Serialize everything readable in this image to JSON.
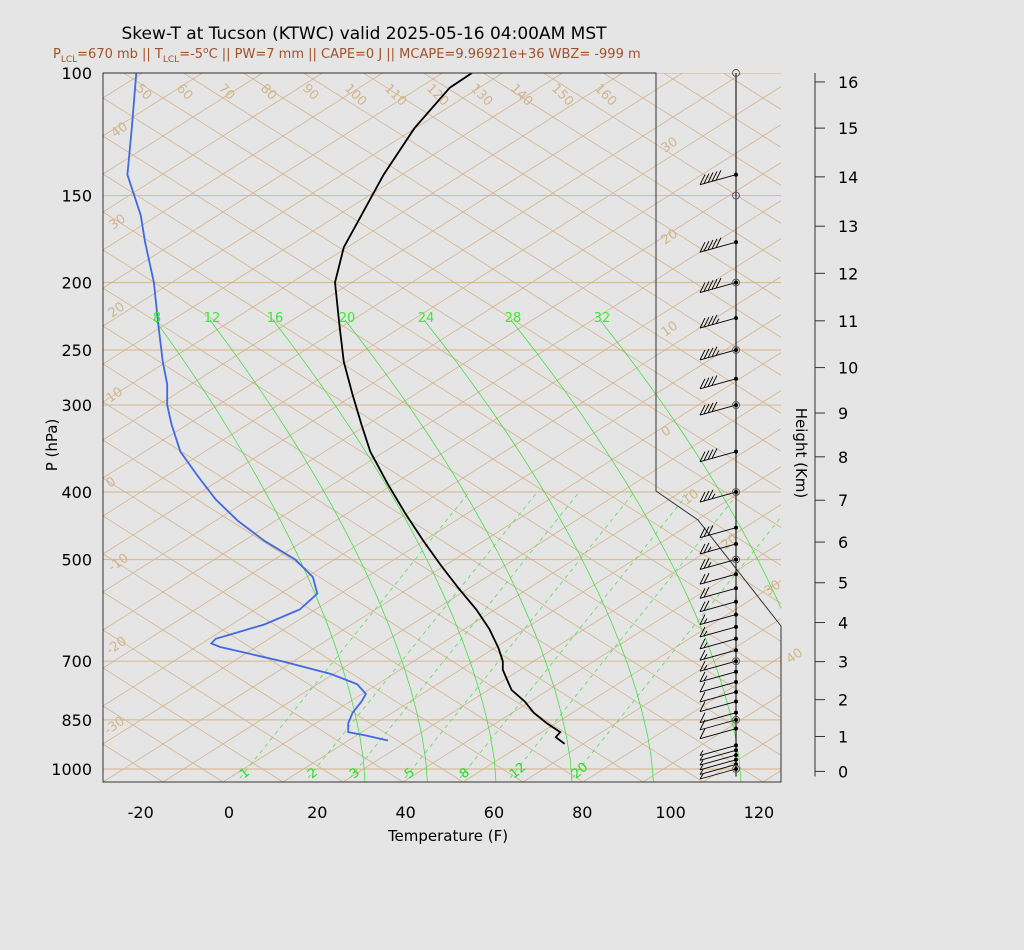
{
  "title": "Skew-T at Tucson (KTWC) valid 2025-05-16 04:00AM MST",
  "subtitle": {
    "p_lcl": "P",
    "p_lcl_sub": "LCL",
    "p_lcl_val": "=670 mb || T",
    "t_lcl_sub": "LCL",
    "t_lcl_val": "=-5",
    "t_lcl_sup": "o",
    "rest": "C || PW=7 mm || CAPE=0 J || MCAPE=9.96921e+36 WBZ= -999 m"
  },
  "colors": {
    "temperature": "#000000",
    "dewpoint": "#4169e1",
    "isotherm": "#d2b48c",
    "moist_adiabat": "#33dd33",
    "mixing_ratio": "#55dd55",
    "isobar": "#d9bb99",
    "background": "#e5e5e5",
    "subtitle": "#a0522d"
  },
  "chart_data": {
    "type": "skew-t",
    "title": "Skew-T at Tucson (KTWC) valid 2025-05-16 04:00AM MST",
    "xlabel": "Temperature (F)",
    "ylabel": "P (hPa)",
    "y2label": "Height (Km)",
    "xlim": [
      -28,
      125
    ],
    "ylim": [
      1025,
      100
    ],
    "y_scale": "log",
    "x_ticks": [
      -20,
      0,
      20,
      40,
      60,
      80,
      100,
      120
    ],
    "x_tick_labels": [
      "-20",
      "0",
      "20",
      "40",
      "60",
      "80",
      "100",
      "120"
    ],
    "pressure_ticks": [
      100,
      150,
      200,
      250,
      300,
      400,
      500,
      700,
      850,
      1000
    ],
    "pressure_tick_labels": [
      "100",
      "150",
      "200",
      "250",
      "300",
      "400",
      "500",
      "700",
      "850",
      "1000"
    ],
    "height_ticks": [
      {
        "km": 0,
        "p": 1008
      },
      {
        "km": 1,
        "p": 898
      },
      {
        "km": 2,
        "p": 795
      },
      {
        "km": 3,
        "p": 701
      },
      {
        "km": 4,
        "p": 616
      },
      {
        "km": 5,
        "p": 540
      },
      {
        "km": 6,
        "p": 472
      },
      {
        "km": 7,
        "p": 411
      },
      {
        "km": 8,
        "p": 356
      },
      {
        "km": 9,
        "p": 308
      },
      {
        "km": 10,
        "p": 265
      },
      {
        "km": 11,
        "p": 227
      },
      {
        "km": 12,
        "p": 194
      },
      {
        "km": 13,
        "p": 166
      },
      {
        "km": 14,
        "p": 141
      },
      {
        "km": 15,
        "p": 120
      },
      {
        "km": 16,
        "p": 103
      }
    ],
    "isotherm_labels": [
      "50",
      "60",
      "70",
      "80",
      "90",
      "100",
      "110",
      "120",
      "130",
      "140",
      "150",
      "160",
      "40",
      "30",
      "20",
      "10",
      "0",
      "-10",
      "-20",
      "-30",
      "30",
      "20",
      "10",
      "0",
      "10",
      "20",
      "30",
      "40"
    ],
    "moist_adiabat_labels": [
      "8",
      "12",
      "16",
      "20",
      "24",
      "28",
      "32"
    ],
    "mixing_ratio_labels": [
      "1",
      "2",
      "3",
      "5",
      "8",
      "12",
      "20"
    ],
    "series": [
      {
        "name": "temperature",
        "points": [
          [
            76,
            920
          ],
          [
            74,
            900
          ],
          [
            75,
            885
          ],
          [
            72,
            860
          ],
          [
            69,
            830
          ],
          [
            67,
            800
          ],
          [
            64,
            770
          ],
          [
            63,
            745
          ],
          [
            62,
            720
          ],
          [
            62,
            700
          ],
          [
            61,
            670
          ],
          [
            59,
            630
          ],
          [
            56,
            590
          ],
          [
            52,
            550
          ],
          [
            48,
            510
          ],
          [
            44,
            470
          ],
          [
            40,
            430
          ],
          [
            36,
            390
          ],
          [
            32,
            350
          ],
          [
            30,
            320
          ],
          [
            28,
            290
          ],
          [
            26,
            260
          ],
          [
            25,
            230
          ],
          [
            24,
            200
          ],
          [
            26,
            178
          ],
          [
            30,
            160
          ],
          [
            35,
            140
          ],
          [
            42,
            120
          ],
          [
            50,
            105
          ],
          [
            55,
            100
          ]
        ]
      },
      {
        "name": "dewpoint",
        "points": [
          [
            36,
            910
          ],
          [
            31,
            895
          ],
          [
            27,
            885
          ],
          [
            27,
            860
          ],
          [
            28,
            830
          ],
          [
            30,
            800
          ],
          [
            31,
            780
          ],
          [
            29,
            755
          ],
          [
            23,
            730
          ],
          [
            12,
            700
          ],
          [
            -2,
            668
          ],
          [
            -4,
            660
          ],
          [
            -3,
            650
          ],
          [
            8,
            620
          ],
          [
            16,
            590
          ],
          [
            20,
            560
          ],
          [
            19,
            530
          ],
          [
            15,
            500
          ],
          [
            8,
            470
          ],
          [
            2,
            440
          ],
          [
            -3,
            410
          ],
          [
            -7,
            380
          ],
          [
            -11,
            350
          ],
          [
            -13,
            320
          ],
          [
            -14,
            300
          ],
          [
            -14,
            280
          ],
          [
            -15,
            260
          ],
          [
            -16,
            230
          ],
          [
            -17,
            200
          ],
          [
            -19,
            175
          ],
          [
            -20,
            160
          ],
          [
            -23,
            140
          ],
          [
            -22,
            120
          ],
          [
            -21,
            100
          ]
        ]
      }
    ],
    "wind_barbs": [
      {
        "p": 1000,
        "speed_kt": 5
      },
      {
        "p": 985,
        "speed_kt": 5
      },
      {
        "p": 970,
        "speed_kt": 5
      },
      {
        "p": 955,
        "speed_kt": 5
      },
      {
        "p": 940,
        "speed_kt": 5
      },
      {
        "p": 925,
        "speed_kt": 5
      },
      {
        "p": 875,
        "speed_kt": 10
      },
      {
        "p": 850,
        "speed_kt": 10
      },
      {
        "p": 830,
        "speed_kt": 10
      },
      {
        "p": 800,
        "speed_kt": 10
      },
      {
        "p": 775,
        "speed_kt": 10
      },
      {
        "p": 750,
        "speed_kt": 10
      },
      {
        "p": 725,
        "speed_kt": 15
      },
      {
        "p": 700,
        "speed_kt": 15
      },
      {
        "p": 675,
        "speed_kt": 15
      },
      {
        "p": 650,
        "speed_kt": 15
      },
      {
        "p": 625,
        "speed_kt": 15
      },
      {
        "p": 600,
        "speed_kt": 15
      },
      {
        "p": 575,
        "speed_kt": 20
      },
      {
        "p": 550,
        "speed_kt": 20
      },
      {
        "p": 525,
        "speed_kt": 20
      },
      {
        "p": 500,
        "speed_kt": 25
      },
      {
        "p": 475,
        "speed_kt": 25
      },
      {
        "p": 450,
        "speed_kt": 30
      },
      {
        "p": 400,
        "speed_kt": 35
      },
      {
        "p": 350,
        "speed_kt": 40
      },
      {
        "p": 300,
        "speed_kt": 40
      },
      {
        "p": 275,
        "speed_kt": 40
      },
      {
        "p": 250,
        "speed_kt": 45
      },
      {
        "p": 225,
        "speed_kt": 45
      },
      {
        "p": 200,
        "speed_kt": 50
      },
      {
        "p": 175,
        "speed_kt": 50
      },
      {
        "p": 140,
        "speed_kt": 50
      }
    ]
  }
}
